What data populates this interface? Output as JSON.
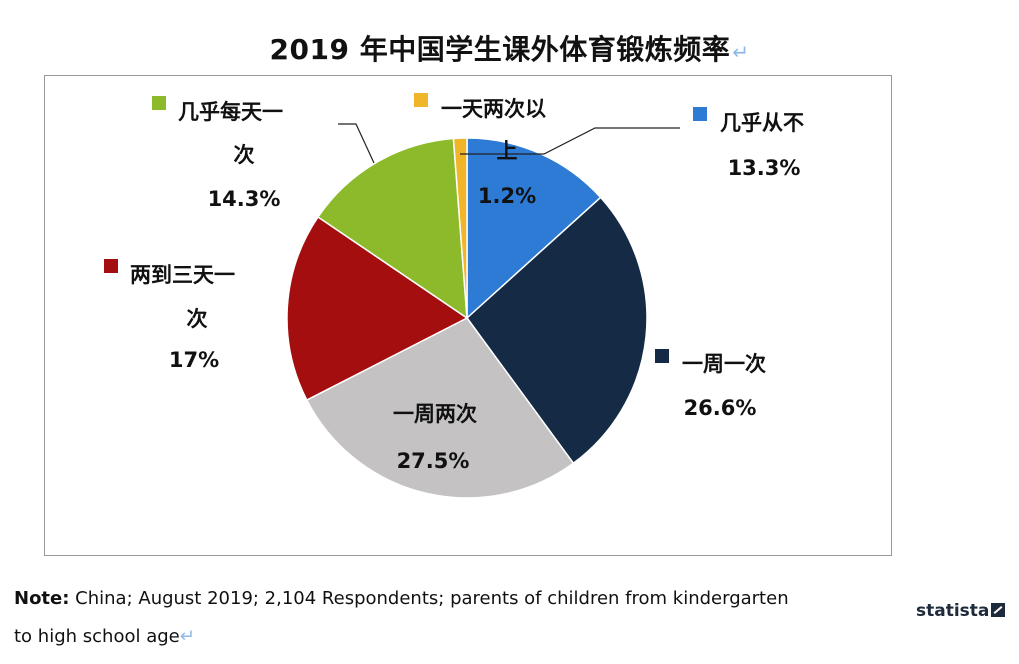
{
  "title": "2019 年中国学生课外体育锻炼频率",
  "chart_data": {
    "type": "pie",
    "title": "2019 年中国学生课外体育锻炼频率",
    "slices": [
      {
        "label": "几乎从不",
        "value": 13.3,
        "value_label": "13.3%",
        "color": "#2e7bd6"
      },
      {
        "label": "一周一次",
        "value": 26.6,
        "value_label": "26.6%",
        "color": "#152a45"
      },
      {
        "label": "一周两次",
        "value": 27.5,
        "value_label": "27.5%",
        "color": "#c4c2c3"
      },
      {
        "label": "两到三天一次",
        "value": 17,
        "value_label": "17%",
        "color": "#a50e0e"
      },
      {
        "label": "几乎每天一次",
        "value": 14.3,
        "value_label": "14.3%",
        "color": "#8cba2a"
      },
      {
        "label": "一天两次以上",
        "value": 1.2,
        "value_label": "1.2%",
        "color": "#f1b52a"
      }
    ],
    "start_at": "12 o'clock",
    "direction": "clockwise"
  },
  "note": {
    "prefix": "Note:",
    "line1": " China; August 2019; 2,104 Respondents; parents of children from kindergarten",
    "line2": "to high school age"
  },
  "brand": "statista"
}
